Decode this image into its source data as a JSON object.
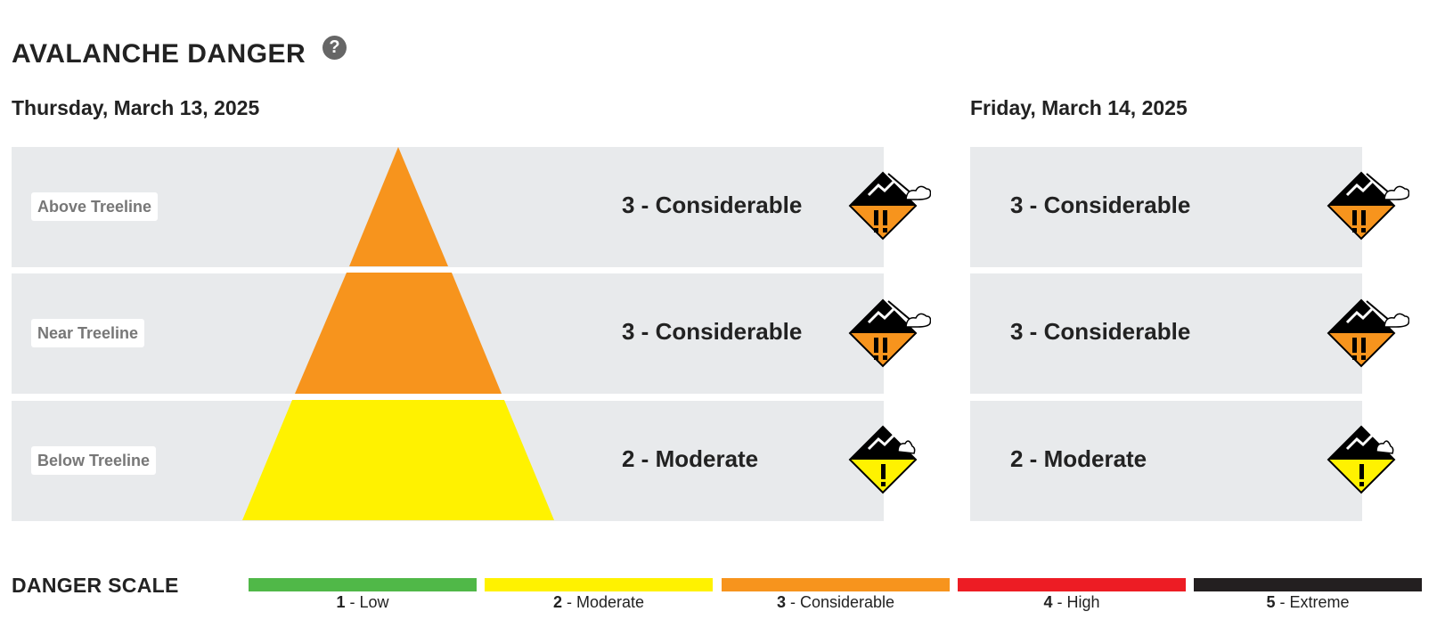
{
  "header": {
    "title": "AVALANCHE DANGER",
    "help_symbol": "?"
  },
  "days": [
    {
      "date": "Thursday, March 13, 2025",
      "bands": [
        {
          "label": "Above Treeline",
          "rating": "3 - Considerable",
          "level": 3,
          "color": "#f7941d",
          "icon": "danger-level-3-icon"
        },
        {
          "label": "Near Treeline",
          "rating": "3 - Considerable",
          "level": 3,
          "color": "#f7941d",
          "icon": "danger-level-3-icon"
        },
        {
          "label": "Below Treeline",
          "rating": "2 - Moderate",
          "level": 2,
          "color": "#fff200",
          "icon": "danger-level-2-icon"
        }
      ]
    },
    {
      "date": "Friday, March 14, 2025",
      "bands": [
        {
          "rating": "3 - Considerable",
          "level": 3,
          "icon": "danger-level-3-icon"
        },
        {
          "rating": "3 - Considerable",
          "level": 3,
          "icon": "danger-level-3-icon"
        },
        {
          "rating": "2 - Moderate",
          "level": 2,
          "icon": "danger-level-2-icon"
        }
      ]
    }
  ],
  "scale": {
    "title": "DANGER SCALE",
    "levels": [
      {
        "num": "1",
        "name": " - Low",
        "color": "#50b848"
      },
      {
        "num": "2",
        "name": " - Moderate",
        "color": "#fff200"
      },
      {
        "num": "3",
        "name": " - Considerable",
        "color": "#f7941d"
      },
      {
        "num": "4",
        "name": " - High",
        "color": "#ed1c24"
      },
      {
        "num": "5",
        "name": " - Extreme",
        "color": "#231f20"
      }
    ]
  }
}
